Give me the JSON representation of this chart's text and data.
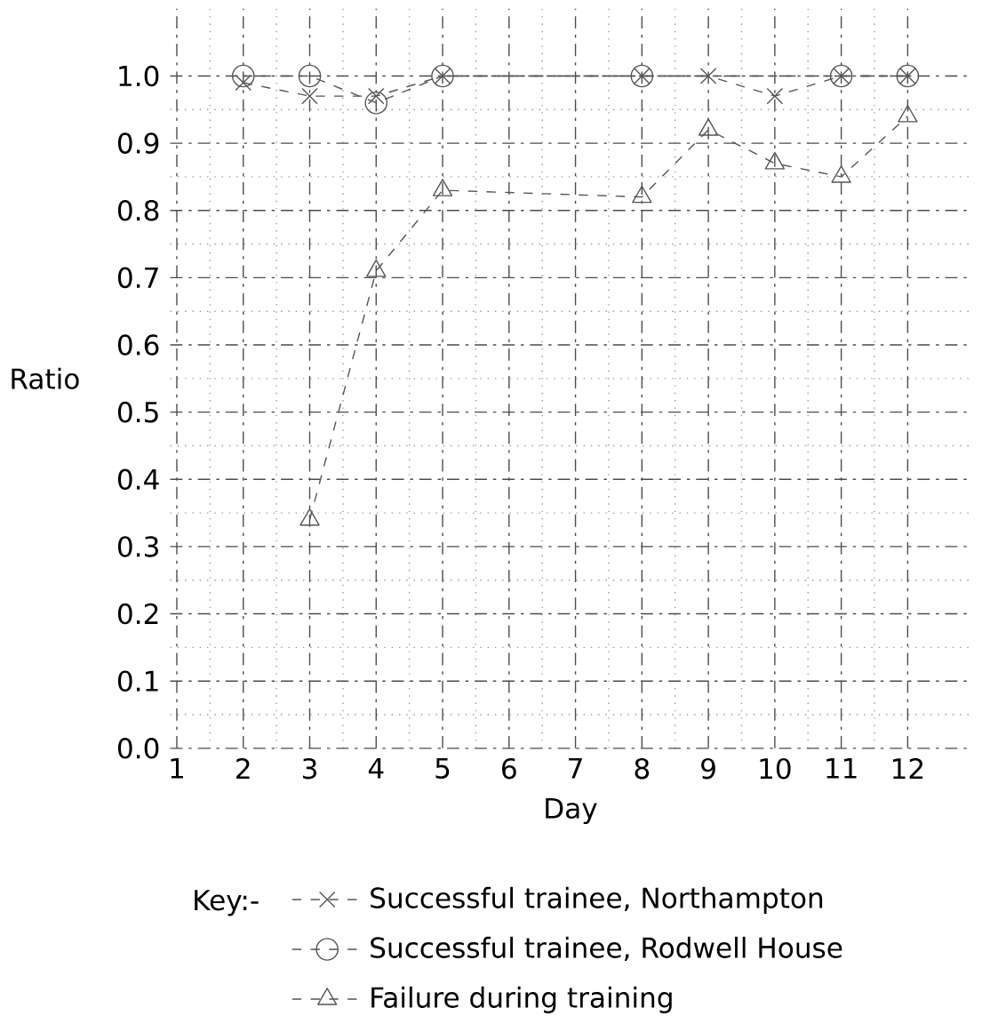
{
  "chart_data": {
    "type": "line",
    "xlabel": "Day",
    "ylabel": "Ratio",
    "legend_title": "Key:-",
    "categories": [
      "1",
      "2",
      "3",
      "4",
      "5",
      "6",
      "7",
      "8",
      "9",
      "10",
      "11",
      "12"
    ],
    "series": [
      {
        "name": "Successful trainee, Northampton",
        "color": "#555555",
        "marker": "cross",
        "values": [
          null,
          0.99,
          0.97,
          0.97,
          1.0,
          null,
          null,
          1.0,
          1.0,
          0.97,
          1.0,
          1.0
        ]
      },
      {
        "name": "Successful trainee, Rodwell House",
        "color": "#555555",
        "marker": "circle",
        "values": [
          null,
          1.0,
          1.0,
          0.96,
          1.0,
          null,
          null,
          1.0,
          null,
          null,
          1.0,
          1.0
        ]
      },
      {
        "name": "Failure during training",
        "color": "#555555",
        "marker": "triangle",
        "values": [
          null,
          null,
          0.34,
          0.71,
          0.83,
          null,
          null,
          0.82,
          0.92,
          0.87,
          0.85,
          0.94
        ]
      }
    ],
    "ylim": [
      0,
      1.1
    ],
    "yticks": [
      {
        "value": 0,
        "label": "0.0"
      },
      0.1,
      0.2,
      0.3,
      0.4,
      0.5,
      0.6,
      0.7,
      0.8,
      0.9,
      {
        "value": 1.0,
        "label": "1.0"
      }
    ],
    "grid": true,
    "legend": "bottom",
    "line_style": "dashed"
  }
}
